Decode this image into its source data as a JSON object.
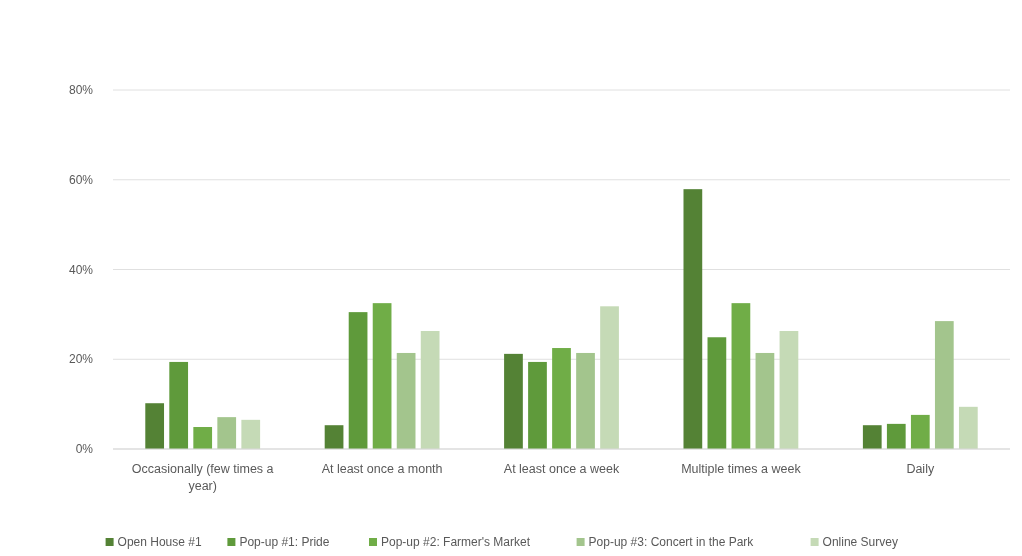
{
  "chart_data": {
    "type": "bar",
    "categories": [
      "Occasionally (few times a year)",
      "At least once a month",
      "At least once a week",
      "Multiple times a week",
      "Daily"
    ],
    "series": [
      {
        "name": "Open House #1",
        "color": "#548235",
        "values": [
          10.2,
          5.3,
          21.2,
          57.9,
          5.3
        ]
      },
      {
        "name": "Pop-up #1: Pride",
        "color": "#5f9a3b",
        "values": [
          19.4,
          30.5,
          19.4,
          24.9,
          5.6
        ]
      },
      {
        "name": "Pop-up #2: Farmer's Market",
        "color": "#70ad47",
        "values": [
          4.9,
          32.5,
          22.5,
          32.5,
          7.6
        ]
      },
      {
        "name": "Pop-up #3: Concert in the Park",
        "color": "#a3c58d",
        "values": [
          7.1,
          21.4,
          21.4,
          21.4,
          28.5
        ]
      },
      {
        "name": "Online Survey",
        "color": "#c5dab6",
        "values": [
          6.5,
          26.3,
          31.8,
          26.3,
          9.4
        ]
      }
    ],
    "ylim": [
      0,
      80
    ],
    "yticks": [
      {
        "value": 0,
        "label": "0%"
      },
      {
        "value": 20,
        "label": "20%"
      },
      {
        "value": 40,
        "label": "40%"
      },
      {
        "value": 60,
        "label": "60%"
      },
      {
        "value": 80,
        "label": "80%"
      }
    ],
    "grid": "y",
    "legend": "bottom"
  }
}
